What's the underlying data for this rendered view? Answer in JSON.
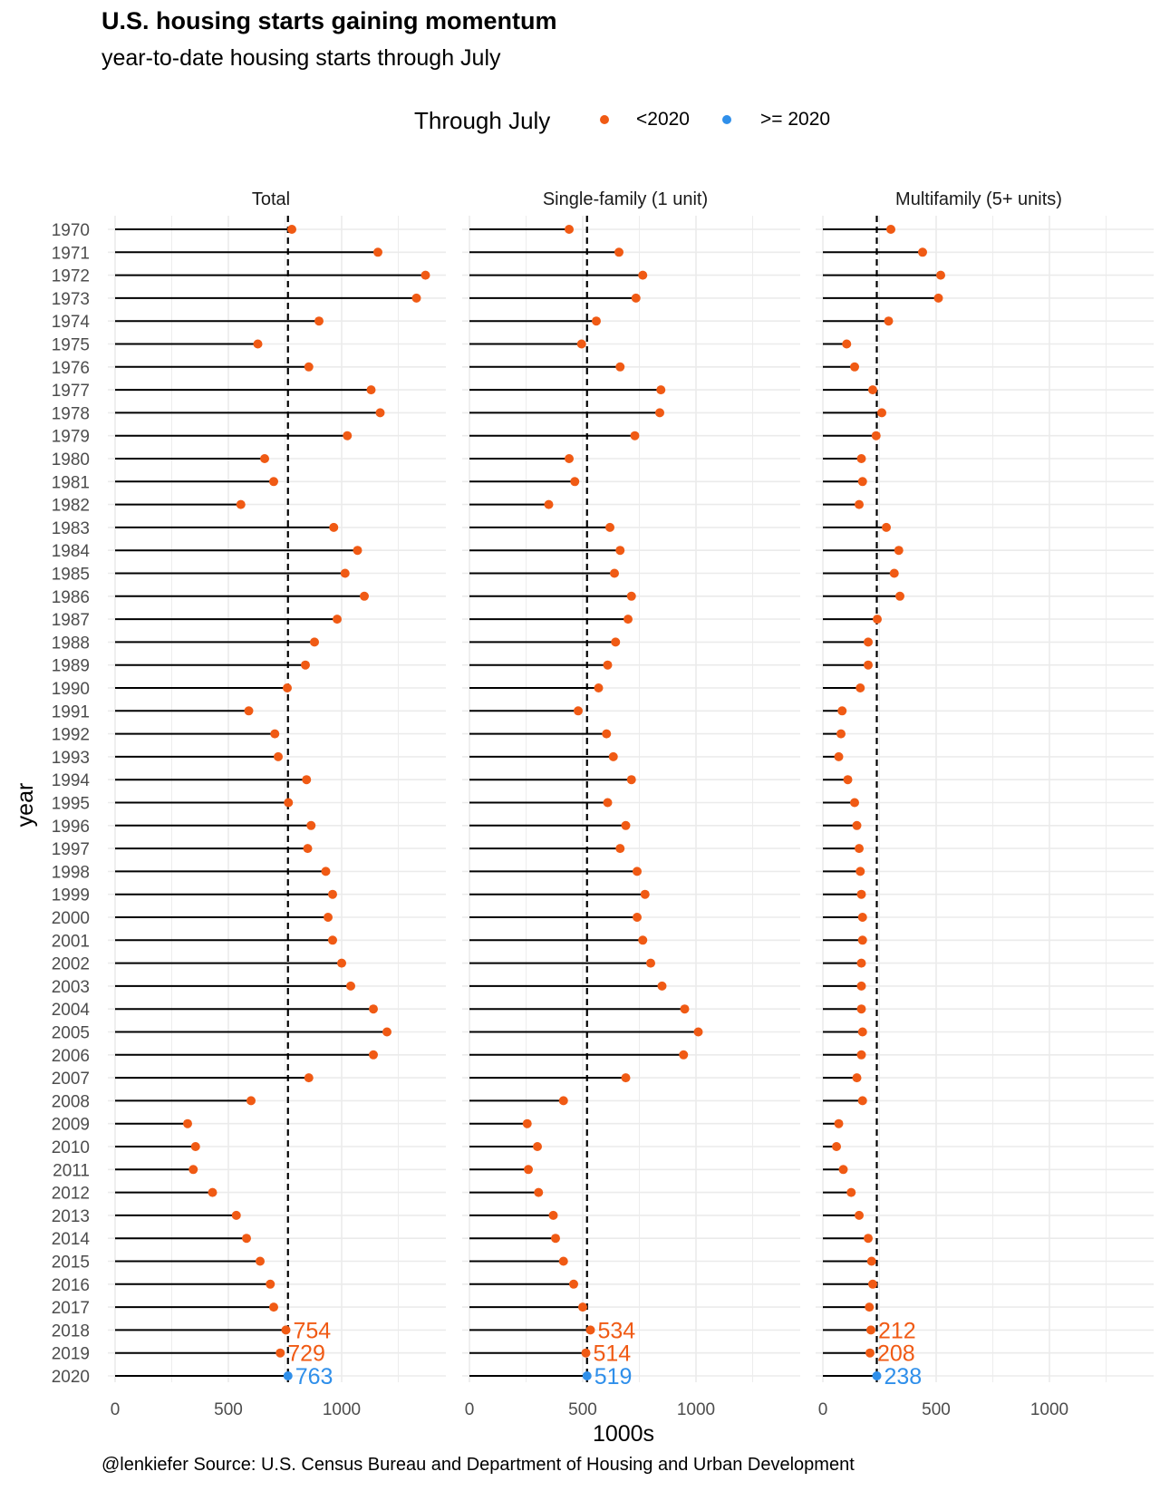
{
  "title": "U.S. housing starts gaining momentum",
  "subtitle": "year-to-date housing starts through July",
  "legend": {
    "title": "Through July",
    "items": [
      {
        "label": "<2020",
        "color": "#f05a14"
      },
      {
        "label": ">= 2020",
        "color": "#2f8fea"
      }
    ]
  },
  "footer": "@lenkiefer Source: U.S. Census Bureau and Department of Housing and Urban Development",
  "colors": {
    "pre2020": "#f05a14",
    "post2020": "#2f8fea",
    "stem": "#000000",
    "grid": "#ebebeb"
  },
  "chart_data": {
    "type": "lollipop",
    "xlabel": "1000s",
    "ylabel": "year",
    "xlim": [
      0,
      1400
    ],
    "x_ticks": [
      0,
      500,
      1000
    ],
    "years": [
      1970,
      1971,
      1972,
      1973,
      1974,
      1975,
      1976,
      1977,
      1978,
      1979,
      1980,
      1981,
      1982,
      1983,
      1984,
      1985,
      1986,
      1987,
      1988,
      1989,
      1990,
      1991,
      1992,
      1993,
      1994,
      1995,
      1996,
      1997,
      1998,
      1999,
      2000,
      2001,
      2002,
      2003,
      2004,
      2005,
      2006,
      2007,
      2008,
      2009,
      2010,
      2011,
      2012,
      2013,
      2014,
      2015,
      2016,
      2017,
      2018,
      2019,
      2020
    ],
    "panels": [
      {
        "name": "Total",
        "reference": 763,
        "values": [
          780,
          1160,
          1370,
          1330,
          900,
          630,
          855,
          1130,
          1170,
          1025,
          660,
          700,
          555,
          965,
          1070,
          1015,
          1100,
          980,
          880,
          840,
          760,
          590,
          705,
          720,
          845,
          765,
          865,
          850,
          930,
          960,
          940,
          960,
          1000,
          1040,
          1140,
          1200,
          1140,
          855,
          600,
          320,
          355,
          345,
          430,
          535,
          580,
          640,
          685,
          700,
          754,
          729,
          763
        ],
        "labels": {
          "2018": "754",
          "2019": "729",
          "2020": "763"
        }
      },
      {
        "name": "Single-family (1 unit)",
        "reference": 519,
        "values": [
          440,
          660,
          765,
          735,
          560,
          495,
          665,
          845,
          840,
          730,
          440,
          465,
          350,
          620,
          665,
          640,
          715,
          700,
          645,
          610,
          570,
          480,
          605,
          635,
          715,
          610,
          690,
          665,
          740,
          775,
          740,
          765,
          800,
          850,
          950,
          1010,
          945,
          690,
          415,
          255,
          300,
          260,
          305,
          370,
          380,
          415,
          460,
          500,
          534,
          514,
          519
        ],
        "labels": {
          "2018": "534",
          "2019": "514",
          "2020": "519"
        }
      },
      {
        "name": "Multifamily (5+ units)",
        "reference": 238,
        "values": [
          300,
          440,
          520,
          510,
          290,
          105,
          140,
          220,
          260,
          235,
          170,
          175,
          160,
          280,
          335,
          315,
          340,
          240,
          200,
          200,
          165,
          85,
          80,
          70,
          110,
          140,
          150,
          160,
          165,
          170,
          175,
          175,
          170,
          170,
          170,
          175,
          170,
          150,
          175,
          70,
          60,
          90,
          125,
          160,
          200,
          215,
          220,
          205,
          212,
          208,
          238
        ],
        "labels": {
          "2018": "212",
          "2019": "208",
          "2020": "238"
        }
      }
    ]
  }
}
